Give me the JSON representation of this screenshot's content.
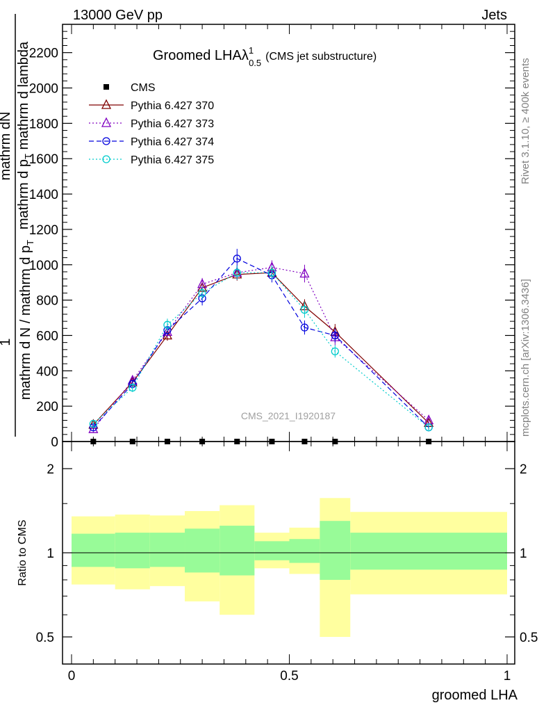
{
  "header": {
    "left": "13000 GeV pp",
    "right": "Jets"
  },
  "side_labels": {
    "rivet": "Rivet 3.1.10, ≥ 400k events",
    "mcplots": "mcplots.cern.ch [arXiv:1306.3436]"
  },
  "watermark": "CMS_2021_I1920187",
  "chart_data": [
    {
      "type": "line",
      "title": "Groomed LHAλ",
      "title_sup": "1",
      "title_sub": "0.5",
      "title_note": "(CMS jet substructure)",
      "ylabel_num": "1",
      "ylabel_line1": "mathrm dN",
      "ylabel_line2": "mathrm d p",
      "ylabel_line2_sub": "T",
      "ylabel_line2_rest": " mathrm d lambda",
      "ylabel_den": "mathrm d N / mathrm d p",
      "ylabel_den_sub": "T",
      "ylim": [
        0,
        2360
      ],
      "yticks": [
        0,
        200,
        400,
        600,
        800,
        1000,
        1200,
        1400,
        1600,
        1800,
        2000,
        2200
      ],
      "ytick_labels": [
        "0",
        "200",
        "400",
        "600",
        "800",
        "1000",
        "1200",
        "1400",
        "1600",
        "1800",
        "2000",
        "2200"
      ],
      "legend_position": "top-left",
      "x": [
        0.05,
        0.14,
        0.22,
        0.3,
        0.38,
        0.46,
        0.535,
        0.605,
        0.82
      ],
      "series": [
        {
          "name": "CMS",
          "color": "#000000",
          "marker": "square",
          "values": [
            0,
            0,
            0,
            0,
            0,
            0,
            0,
            0,
            0
          ]
        },
        {
          "name": "Pythia 6.427 370",
          "color": "#800000",
          "marker": "triangle",
          "dash": "",
          "values": [
            95,
            335,
            600,
            870,
            945,
            955,
            765,
            620,
            105
          ],
          "err": [
            20,
            25,
            30,
            30,
            35,
            35,
            40,
            45,
            20
          ]
        },
        {
          "name": "Pythia 6.427 373",
          "color": "#8000c0",
          "marker": "triangle",
          "dash": "2,3",
          "values": [
            70,
            345,
            620,
            890,
            955,
            985,
            950,
            590,
            120
          ],
          "err": [
            20,
            25,
            30,
            35,
            40,
            40,
            50,
            45,
            20
          ]
        },
        {
          "name": "Pythia 6.427 374",
          "color": "#0000dd",
          "marker": "circle",
          "dash": "7,4",
          "values": [
            80,
            325,
            630,
            810,
            1035,
            940,
            645,
            600,
            80
          ],
          "err": [
            20,
            25,
            30,
            40,
            55,
            40,
            40,
            40,
            15
          ]
        },
        {
          "name": "Pythia 6.427 375",
          "color": "#00cccc",
          "marker": "circle",
          "dash": "2,3",
          "values": [
            100,
            305,
            660,
            840,
            955,
            955,
            745,
            510,
            80
          ],
          "err": [
            20,
            25,
            35,
            35,
            40,
            40,
            45,
            35,
            15
          ]
        }
      ]
    },
    {
      "type": "area",
      "ylabel": "Ratio to CMS",
      "xlabel": "groomed LHA",
      "xlim": [
        0,
        1
      ],
      "xticks": [
        0,
        0.5,
        1
      ],
      "xtick_labels": [
        "0",
        "0.5",
        "1"
      ],
      "yticks_major": [
        0.5,
        1,
        2
      ],
      "ytick_labels": [
        "0.5",
        "1",
        "2"
      ],
      "bins": [
        {
          "lo": 0.0,
          "hi": 0.1,
          "inner": [
            0.89,
            1.17
          ],
          "outer": [
            0.77,
            1.35
          ]
        },
        {
          "lo": 0.1,
          "hi": 0.18,
          "inner": [
            0.88,
            1.18
          ],
          "outer": [
            0.74,
            1.37
          ]
        },
        {
          "lo": 0.18,
          "hi": 0.26,
          "inner": [
            0.89,
            1.18
          ],
          "outer": [
            0.76,
            1.36
          ]
        },
        {
          "lo": 0.26,
          "hi": 0.34,
          "inner": [
            0.85,
            1.22
          ],
          "outer": [
            0.67,
            1.41
          ]
        },
        {
          "lo": 0.34,
          "hi": 0.42,
          "inner": [
            0.83,
            1.25
          ],
          "outer": [
            0.6,
            1.48
          ]
        },
        {
          "lo": 0.42,
          "hi": 0.5,
          "inner": [
            0.94,
            1.1
          ],
          "outer": [
            0.88,
            1.18
          ]
        },
        {
          "lo": 0.5,
          "hi": 0.57,
          "inner": [
            0.92,
            1.12
          ],
          "outer": [
            0.84,
            1.23
          ]
        },
        {
          "lo": 0.57,
          "hi": 0.64,
          "inner": [
            0.8,
            1.3
          ],
          "outer": [
            0.5,
            1.57
          ]
        },
        {
          "lo": 0.64,
          "hi": 1.0,
          "inner": [
            0.87,
            1.18
          ],
          "outer": [
            0.71,
            1.4
          ]
        }
      ],
      "inner_color": "#98fb98",
      "outer_color": "#ffff9f"
    }
  ]
}
